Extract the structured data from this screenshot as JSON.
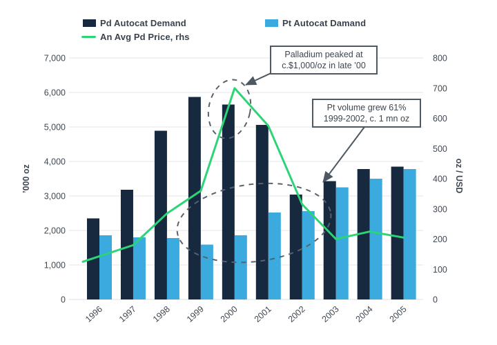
{
  "legend": {
    "items": [
      {
        "label": "Pd Autocat Demand",
        "swatch": "bar",
        "color": "#17293F"
      },
      {
        "label": "Pt Autocat Damand",
        "swatch": "bar",
        "color": "#3BAADF"
      },
      {
        "label": "An Avg Pd Price, rhs",
        "swatch": "line",
        "color": "#2BD576"
      }
    ]
  },
  "annotations": [
    {
      "id": "peak",
      "lines": [
        "Palladium peaked at",
        "c.$1,000/oz in late ’00"
      ]
    },
    {
      "id": "pt-growth",
      "lines": [
        "Pt volume grew 61%",
        "1999-2002, c. 1 mn oz"
      ]
    }
  ],
  "chart_data": {
    "type": "bar",
    "subtype": "grouped bars with secondary-axis line",
    "categories": [
      "1996",
      "1997",
      "1998",
      "1999",
      "2000",
      "2001",
      "2002",
      "2003",
      "2004",
      "2005"
    ],
    "series": [
      {
        "name": "Pd Autocat Demand",
        "type": "bar",
        "axis": "left",
        "color": "#17293F",
        "values": [
          2350,
          3180,
          4890,
          5870,
          5650,
          5060,
          3040,
          3430,
          3780,
          3850
        ]
      },
      {
        "name": "Pt Autocat Damand",
        "type": "bar",
        "axis": "left",
        "color": "#3BAADF",
        "values": [
          1860,
          1800,
          1780,
          1590,
          1860,
          2520,
          2560,
          3250,
          3500,
          3780
        ]
      },
      {
        "name": "An Avg Pd Price, rhs",
        "type": "line",
        "axis": "right",
        "color": "#2BD576",
        "values": [
          125,
          180,
          285,
          360,
          700,
          575,
          315,
          200,
          225,
          205
        ]
      }
    ],
    "left_axis": {
      "label": "’000 oz",
      "min": 0,
      "max": 7000,
      "step": 1000,
      "tick_labels": [
        "0",
        "1,000",
        "2,000",
        "3,000",
        "4,000",
        "5,000",
        "6,000",
        "7,000"
      ]
    },
    "right_axis": {
      "label": "oz / USD",
      "min": 0,
      "max": 800,
      "step": 100,
      "tick_labels": [
        "0",
        "100",
        "200",
        "300",
        "400",
        "500",
        "600",
        "700",
        "800"
      ]
    },
    "grid": "horizontal",
    "legend_position": "top"
  },
  "colors": {
    "grid": "#E8EBEE",
    "baseline": "#E2E6EA",
    "tick_text": "#3F4853",
    "dashed_highlight": "#59616C",
    "arrow": "#4E5863"
  }
}
